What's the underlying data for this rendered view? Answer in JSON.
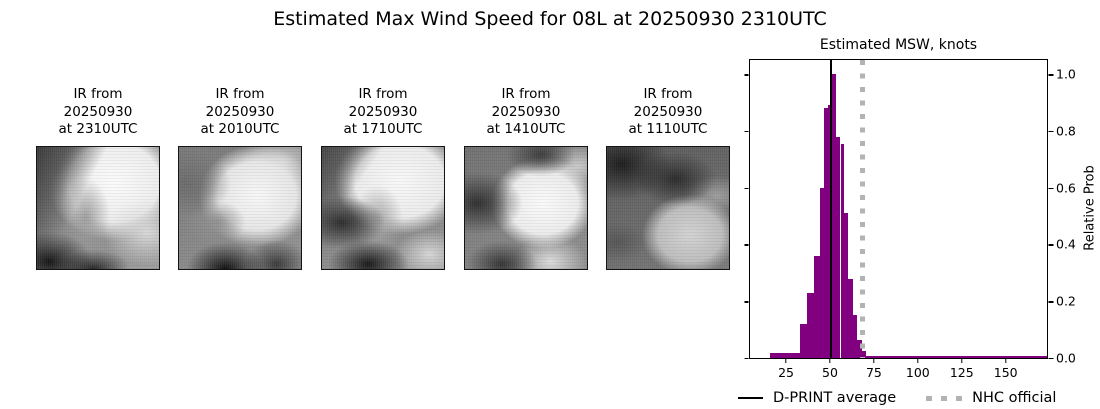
{
  "page_title": "Estimated Max Wind Speed for 08L at 20250930 2310UTC",
  "ir_panels": [
    {
      "line1": "IR from",
      "line2": "20250930",
      "line3": "at 2310UTC"
    },
    {
      "line1": "IR from",
      "line2": "20250930",
      "line3": "at 2010UTC"
    },
    {
      "line1": "IR from",
      "line2": "20250930",
      "line3": "at 1710UTC"
    },
    {
      "line1": "IR from",
      "line2": "20250930",
      "line3": "at 1410UTC"
    },
    {
      "line1": "IR from",
      "line2": "20250930",
      "line3": "at 1110UTC"
    }
  ],
  "chart_data": {
    "type": "bar",
    "title": "Estimated MSW, knots",
    "ylabel": "Relative Prob",
    "xlim": [
      4.5,
      173.5
    ],
    "ylim": [
      0,
      1.05
    ],
    "x_ticks": [
      25,
      50,
      75,
      100,
      125,
      150
    ],
    "y_ticks": [
      "0.0",
      "0.2",
      "0.4",
      "0.6",
      "0.8",
      "1.0"
    ],
    "bar_color": "#800080",
    "bars": [
      {
        "x0": 16.0,
        "x1": 33.0,
        "p": 0.017
      },
      {
        "x0": 33.0,
        "x1": 37.0,
        "p": 0.12
      },
      {
        "x0": 37.0,
        "x1": 41.0,
        "p": 0.23
      },
      {
        "x0": 41.0,
        "x1": 44.5,
        "p": 0.36
      },
      {
        "x0": 44.5,
        "x1": 46.5,
        "p": 0.6
      },
      {
        "x0": 46.5,
        "x1": 49.0,
        "p": 0.88
      },
      {
        "x0": 49.0,
        "x1": 51.2,
        "p": 0.89
      },
      {
        "x0": 51.2,
        "x1": 53.7,
        "p": 1.0
      },
      {
        "x0": 53.7,
        "x1": 56.0,
        "p": 0.78
      },
      {
        "x0": 56.0,
        "x1": 58.0,
        "p": 0.755
      },
      {
        "x0": 58.0,
        "x1": 60.5,
        "p": 0.51
      },
      {
        "x0": 60.5,
        "x1": 63.0,
        "p": 0.28
      },
      {
        "x0": 63.0,
        "x1": 65.5,
        "p": 0.15
      },
      {
        "x0": 65.5,
        "x1": 68.0,
        "p": 0.065
      },
      {
        "x0": 68.0,
        "x1": 70.5,
        "p": 0.023
      },
      {
        "x0": 70.5,
        "x1": 173.5,
        "p": 0.006
      }
    ],
    "avg_line": {
      "x": 50.8,
      "color": "#000000"
    },
    "nhc_line": {
      "x": 68.5,
      "color": "#b3b3b3"
    }
  },
  "legend": {
    "dprint_label": "D-PRINT average",
    "nhc_label": "NHC official"
  }
}
